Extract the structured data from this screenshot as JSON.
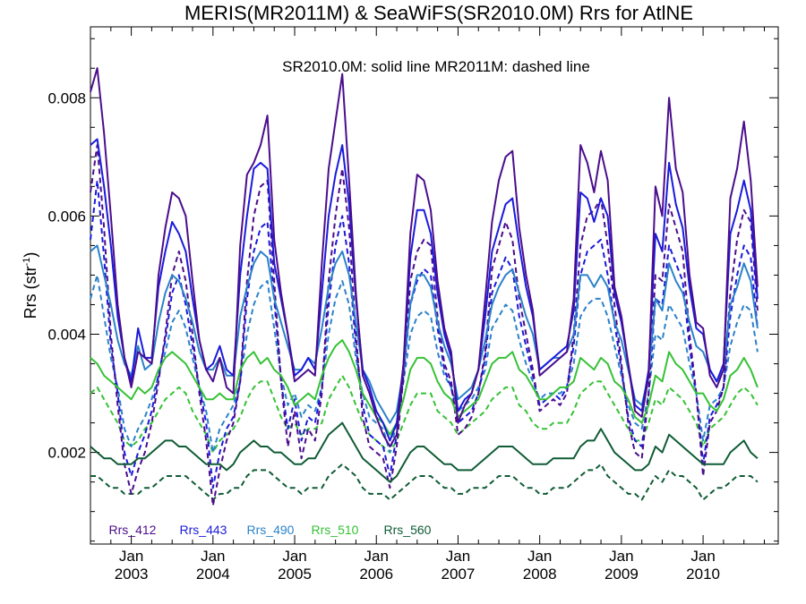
{
  "chart_data": {
    "type": "line",
    "title": "MERIS(MR2011M) & SeaWiFS(SR2010.0M)  Rrs for AtlNE",
    "annotation": "SR2010.0M: solid line   MR2011M: dashed line",
    "ylabel_main": "Rrs (str",
    "ylabel_sup": "-1",
    "ylabel_tail": ")",
    "xlabel": "",
    "ylim": [
      0.00045,
      0.0092
    ],
    "xlim": [
      2002.5,
      2010.92
    ],
    "yticks": [
      0.002,
      0.004,
      0.006,
      0.008
    ],
    "ytick_labels": [
      "0.002",
      "0.004",
      "0.006",
      "0.008"
    ],
    "xticks": [
      2003,
      2004,
      2005,
      2006,
      2007,
      2008,
      2009,
      2010
    ],
    "xtick_month": [
      "Jan",
      "Jan",
      "Jan",
      "Jan",
      "Jan",
      "Jan",
      "Jan",
      "Jan"
    ],
    "xtick_year": [
      "2003",
      "2004",
      "2005",
      "2006",
      "2007",
      "2008",
      "2009",
      "2010"
    ],
    "grid": false,
    "legend_position": "bottom-left",
    "x_start": 2002.5,
    "x_step": 0.08333,
    "series": [
      {
        "name": "Rrs_412",
        "color": "#4b0d8c",
        "solid": [
          0.0081,
          0.0085,
          0.0074,
          0.006,
          0.0045,
          0.0036,
          0.0031,
          0.0037,
          0.0036,
          0.0035,
          0.005,
          0.0058,
          0.0064,
          0.0063,
          0.006,
          0.0049,
          0.0039,
          0.0034,
          0.0032,
          0.0036,
          0.0031,
          0.003,
          0.0055,
          0.0067,
          0.0069,
          0.0072,
          0.0077,
          0.0056,
          0.0047,
          0.004,
          0.0032,
          0.0033,
          0.0034,
          0.0033,
          0.0052,
          0.0068,
          0.0076,
          0.0084,
          0.0066,
          0.0047,
          0.0033,
          0.003,
          0.0026,
          0.0023,
          0.0021,
          0.0023,
          0.0035,
          0.0057,
          0.0067,
          0.0066,
          0.0061,
          0.0049,
          0.0041,
          0.0037,
          0.0025,
          0.0028,
          0.003,
          0.0034,
          0.0046,
          0.0059,
          0.0066,
          0.007,
          0.0071,
          0.0058,
          0.005,
          0.0044,
          0.0033,
          0.0034,
          0.0035,
          0.0036,
          0.0037,
          0.0046,
          0.0072,
          0.0069,
          0.0064,
          0.0071,
          0.0066,
          0.0048,
          0.0043,
          0.0035,
          0.0027,
          0.0026,
          0.0033,
          0.0065,
          0.006,
          0.008,
          0.0068,
          0.0064,
          0.005,
          0.0042,
          0.0041,
          0.0033,
          0.0031,
          0.0034,
          0.0063,
          0.0068,
          0.0076,
          0.0066,
          0.0048
        ],
        "dashed": [
          0.0064,
          0.0072,
          0.0058,
          0.004,
          0.0028,
          0.0018,
          0.0013,
          0.0017,
          0.002,
          0.0025,
          0.0032,
          0.004,
          0.005,
          0.0054,
          0.0049,
          0.004,
          0.003,
          0.0022,
          0.0011,
          0.0017,
          0.0022,
          0.0025,
          0.0032,
          0.0049,
          0.006,
          0.0065,
          0.0066,
          0.0049,
          0.0032,
          0.0021,
          0.0027,
          0.0019,
          0.0024,
          0.0022,
          0.003,
          0.0049,
          0.006,
          0.0068,
          0.0058,
          0.004,
          0.0026,
          0.0021,
          0.002,
          0.0019,
          0.0014,
          0.0021,
          0.0033,
          0.0049,
          0.0054,
          0.0056,
          0.0055,
          0.0043,
          0.0035,
          0.0032,
          0.0023,
          0.0024,
          0.0026,
          0.003,
          0.0037,
          0.0051,
          0.0055,
          0.0059,
          0.0056,
          0.0046,
          0.004,
          0.0034,
          0.0027,
          0.0028,
          0.0029,
          0.0028,
          0.003,
          0.004,
          0.0055,
          0.006,
          0.0061,
          0.0063,
          0.0055,
          0.0045,
          0.0035,
          0.0025,
          0.002,
          0.0019,
          0.003,
          0.005,
          0.0049,
          0.0062,
          0.0058,
          0.0054,
          0.004,
          0.003,
          0.0016,
          0.0025,
          0.0027,
          0.0031,
          0.0047,
          0.0056,
          0.0061,
          0.0059,
          0.0044
        ]
      },
      {
        "name": "Rrs_443",
        "color": "#1a1adb",
        "solid": [
          0.0072,
          0.0073,
          0.0065,
          0.0055,
          0.0043,
          0.0036,
          0.0032,
          0.0041,
          0.0036,
          0.0036,
          0.0048,
          0.0054,
          0.0059,
          0.0057,
          0.0054,
          0.0046,
          0.0039,
          0.0034,
          0.0035,
          0.0038,
          0.0034,
          0.0033,
          0.005,
          0.006,
          0.0068,
          0.0069,
          0.0068,
          0.0052,
          0.0046,
          0.004,
          0.0033,
          0.0034,
          0.0036,
          0.0034,
          0.0047,
          0.006,
          0.0067,
          0.0072,
          0.0062,
          0.0046,
          0.0034,
          0.0031,
          0.0027,
          0.0025,
          0.0022,
          0.0025,
          0.0035,
          0.0053,
          0.0061,
          0.0061,
          0.0057,
          0.0047,
          0.004,
          0.0036,
          0.0027,
          0.0029,
          0.003,
          0.0034,
          0.0043,
          0.0054,
          0.0058,
          0.0062,
          0.0063,
          0.0055,
          0.0048,
          0.0043,
          0.0034,
          0.0035,
          0.0036,
          0.0037,
          0.0038,
          0.0044,
          0.0064,
          0.0063,
          0.0059,
          0.0063,
          0.006,
          0.0047,
          0.0042,
          0.0035,
          0.0028,
          0.0027,
          0.0034,
          0.0057,
          0.0054,
          0.0069,
          0.0062,
          0.0058,
          0.0048,
          0.0041,
          0.004,
          0.0034,
          0.0032,
          0.0035,
          0.0057,
          0.0061,
          0.0066,
          0.0061,
          0.0046
        ],
        "dashed": [
          0.0056,
          0.0066,
          0.0053,
          0.0038,
          0.003,
          0.002,
          0.0016,
          0.002,
          0.0023,
          0.0027,
          0.0033,
          0.0039,
          0.0047,
          0.005,
          0.0045,
          0.0038,
          0.0031,
          0.0025,
          0.0014,
          0.002,
          0.0024,
          0.0026,
          0.0032,
          0.0046,
          0.0054,
          0.0058,
          0.0059,
          0.0046,
          0.0032,
          0.0024,
          0.0029,
          0.0022,
          0.0026,
          0.0025,
          0.0031,
          0.0045,
          0.0055,
          0.006,
          0.0052,
          0.0038,
          0.0028,
          0.0023,
          0.0022,
          0.0021,
          0.0016,
          0.0023,
          0.0033,
          0.0045,
          0.0049,
          0.0051,
          0.005,
          0.0041,
          0.0034,
          0.0031,
          0.0025,
          0.0026,
          0.0027,
          0.003,
          0.0036,
          0.0047,
          0.005,
          0.0053,
          0.0051,
          0.0043,
          0.0038,
          0.0033,
          0.0028,
          0.0029,
          0.003,
          0.0029,
          0.0031,
          0.0038,
          0.005,
          0.0054,
          0.0055,
          0.0056,
          0.005,
          0.0042,
          0.0034,
          0.0026,
          0.0022,
          0.0021,
          0.003,
          0.0046,
          0.0045,
          0.0055,
          0.0052,
          0.0049,
          0.0038,
          0.003,
          0.0018,
          0.0026,
          0.0028,
          0.0031,
          0.0043,
          0.005,
          0.0055,
          0.0053,
          0.0041
        ]
      },
      {
        "name": "Rrs_490",
        "color": "#2b82c9",
        "solid": [
          0.0054,
          0.0055,
          0.005,
          0.0045,
          0.0039,
          0.0035,
          0.0033,
          0.0038,
          0.0034,
          0.0035,
          0.0042,
          0.0047,
          0.005,
          0.0049,
          0.0046,
          0.0042,
          0.0037,
          0.0034,
          0.0034,
          0.0036,
          0.0033,
          0.0033,
          0.0043,
          0.0048,
          0.0052,
          0.0054,
          0.0053,
          0.0046,
          0.0042,
          0.0038,
          0.0034,
          0.0034,
          0.0036,
          0.0035,
          0.0041,
          0.0048,
          0.0052,
          0.0054,
          0.005,
          0.0042,
          0.0034,
          0.0032,
          0.0029,
          0.0027,
          0.0025,
          0.0027,
          0.0034,
          0.0045,
          0.005,
          0.005,
          0.0048,
          0.0042,
          0.0038,
          0.0035,
          0.0029,
          0.003,
          0.0031,
          0.0034,
          0.0039,
          0.0045,
          0.0048,
          0.005,
          0.0051,
          0.0047,
          0.0043,
          0.004,
          0.0034,
          0.0035,
          0.0036,
          0.0036,
          0.0037,
          0.004,
          0.005,
          0.005,
          0.0048,
          0.005,
          0.0048,
          0.0042,
          0.0039,
          0.0034,
          0.0029,
          0.0028,
          0.0033,
          0.0046,
          0.0044,
          0.0052,
          0.0049,
          0.0047,
          0.0042,
          0.0038,
          0.0037,
          0.0034,
          0.0032,
          0.0034,
          0.0045,
          0.0048,
          0.0052,
          0.0049,
          0.0041
        ],
        "dashed": [
          0.0046,
          0.005,
          0.0043,
          0.0036,
          0.0031,
          0.0024,
          0.0021,
          0.0024,
          0.0026,
          0.0029,
          0.0033,
          0.0037,
          0.0042,
          0.0044,
          0.0041,
          0.0036,
          0.0031,
          0.0027,
          0.002,
          0.0024,
          0.0026,
          0.0028,
          0.0032,
          0.004,
          0.0045,
          0.0048,
          0.0049,
          0.0041,
          0.0033,
          0.0028,
          0.003,
          0.0026,
          0.0028,
          0.0027,
          0.0031,
          0.004,
          0.0046,
          0.0049,
          0.0045,
          0.0036,
          0.003,
          0.0026,
          0.0025,
          0.0024,
          0.002,
          0.0025,
          0.0032,
          0.004,
          0.0043,
          0.0044,
          0.0043,
          0.0037,
          0.0033,
          0.0031,
          0.0027,
          0.0028,
          0.0029,
          0.0031,
          0.0034,
          0.0041,
          0.0043,
          0.0045,
          0.0044,
          0.0039,
          0.0035,
          0.0032,
          0.0029,
          0.003,
          0.003,
          0.003,
          0.0031,
          0.0035,
          0.0043,
          0.0045,
          0.0046,
          0.0046,
          0.0043,
          0.0038,
          0.0033,
          0.0028,
          0.0025,
          0.0024,
          0.003,
          0.004,
          0.0039,
          0.0045,
          0.0043,
          0.0041,
          0.0035,
          0.003,
          0.0022,
          0.0028,
          0.0029,
          0.0031,
          0.0038,
          0.0042,
          0.0045,
          0.0044,
          0.0037
        ]
      },
      {
        "name": "Rrs_510",
        "color": "#35c235",
        "solid": [
          0.0036,
          0.0035,
          0.0033,
          0.0032,
          0.0031,
          0.003,
          0.0029,
          0.0031,
          0.003,
          0.0031,
          0.0034,
          0.0036,
          0.0037,
          0.0036,
          0.0035,
          0.0033,
          0.0031,
          0.0029,
          0.0029,
          0.003,
          0.0029,
          0.0029,
          0.0034,
          0.0036,
          0.0037,
          0.0035,
          0.0036,
          0.0034,
          0.0033,
          0.0031,
          0.0028,
          0.0029,
          0.003,
          0.0029,
          0.0033,
          0.0036,
          0.0038,
          0.0039,
          0.0037,
          0.0034,
          0.003,
          0.0028,
          0.0026,
          0.0025,
          0.0023,
          0.0025,
          0.0029,
          0.0034,
          0.0036,
          0.0036,
          0.0035,
          0.0032,
          0.003,
          0.0029,
          0.0026,
          0.0027,
          0.0028,
          0.0029,
          0.0032,
          0.0035,
          0.0036,
          0.0036,
          0.0037,
          0.0034,
          0.0033,
          0.0031,
          0.0029,
          0.0029,
          0.003,
          0.0031,
          0.0031,
          0.0032,
          0.0036,
          0.0035,
          0.0034,
          0.0036,
          0.0035,
          0.0032,
          0.0031,
          0.0029,
          0.0026,
          0.0025,
          0.0028,
          0.0033,
          0.0032,
          0.0037,
          0.0035,
          0.0034,
          0.0032,
          0.003,
          0.003,
          0.0028,
          0.0027,
          0.0029,
          0.0033,
          0.0034,
          0.0036,
          0.0034,
          0.0031
        ],
        "dashed": [
          0.003,
          0.0031,
          0.0029,
          0.0027,
          0.0025,
          0.0022,
          0.0021,
          0.0022,
          0.0024,
          0.0025,
          0.0027,
          0.0029,
          0.003,
          0.0031,
          0.003,
          0.0027,
          0.0025,
          0.0023,
          0.002,
          0.0022,
          0.0023,
          0.0024,
          0.0026,
          0.0029,
          0.0031,
          0.0032,
          0.0032,
          0.0029,
          0.0026,
          0.0024,
          0.0025,
          0.0023,
          0.0024,
          0.0024,
          0.0025,
          0.0029,
          0.0031,
          0.0033,
          0.0031,
          0.0028,
          0.0025,
          0.0023,
          0.0022,
          0.0021,
          0.002,
          0.0022,
          0.0025,
          0.0028,
          0.003,
          0.003,
          0.003,
          0.0027,
          0.0026,
          0.0025,
          0.0023,
          0.0024,
          0.0025,
          0.0026,
          0.0027,
          0.0029,
          0.003,
          0.0031,
          0.0031,
          0.0028,
          0.0027,
          0.0025,
          0.0024,
          0.0024,
          0.0025,
          0.0025,
          0.0025,
          0.0027,
          0.003,
          0.0031,
          0.0032,
          0.0032,
          0.003,
          0.0028,
          0.0026,
          0.0024,
          0.0022,
          0.0022,
          0.0025,
          0.0029,
          0.0028,
          0.0031,
          0.003,
          0.0029,
          0.0027,
          0.0025,
          0.0021,
          0.0024,
          0.0025,
          0.0026,
          0.0028,
          0.003,
          0.0031,
          0.003,
          0.0028
        ]
      },
      {
        "name": "Rrs_560",
        "color": "#0f5c35",
        "solid": [
          0.0021,
          0.002,
          0.0019,
          0.0019,
          0.0018,
          0.0018,
          0.0018,
          0.0019,
          0.0019,
          0.002,
          0.0021,
          0.0022,
          0.0022,
          0.0021,
          0.0021,
          0.002,
          0.0019,
          0.0018,
          0.0018,
          0.0018,
          0.0017,
          0.0018,
          0.002,
          0.0021,
          0.0022,
          0.0021,
          0.0021,
          0.002,
          0.002,
          0.0019,
          0.0018,
          0.0018,
          0.0019,
          0.0019,
          0.0021,
          0.0023,
          0.0024,
          0.0025,
          0.0023,
          0.0021,
          0.0019,
          0.0018,
          0.0017,
          0.0016,
          0.0015,
          0.0016,
          0.0018,
          0.002,
          0.0021,
          0.0021,
          0.002,
          0.0019,
          0.0018,
          0.0018,
          0.0017,
          0.0017,
          0.0017,
          0.0018,
          0.0019,
          0.002,
          0.0021,
          0.0021,
          0.0021,
          0.002,
          0.0019,
          0.0018,
          0.0018,
          0.0018,
          0.0019,
          0.0019,
          0.0019,
          0.0019,
          0.0021,
          0.0022,
          0.0022,
          0.0024,
          0.0022,
          0.002,
          0.0019,
          0.0018,
          0.0017,
          0.0017,
          0.0018,
          0.0021,
          0.002,
          0.0023,
          0.0022,
          0.0021,
          0.002,
          0.0019,
          0.0018,
          0.0018,
          0.0018,
          0.0018,
          0.002,
          0.0021,
          0.0022,
          0.002,
          0.0019
        ],
        "dashed": [
          0.0016,
          0.0016,
          0.0015,
          0.0014,
          0.0014,
          0.0013,
          0.0013,
          0.0013,
          0.0014,
          0.0014,
          0.0015,
          0.0016,
          0.0016,
          0.0016,
          0.0016,
          0.0015,
          0.0014,
          0.0013,
          0.0012,
          0.0013,
          0.0013,
          0.0014,
          0.0014,
          0.0016,
          0.0017,
          0.0017,
          0.0017,
          0.0016,
          0.0015,
          0.0014,
          0.0014,
          0.0013,
          0.0014,
          0.0014,
          0.0014,
          0.0016,
          0.0017,
          0.0018,
          0.0017,
          0.0016,
          0.0014,
          0.0013,
          0.0013,
          0.0013,
          0.0012,
          0.0013,
          0.0014,
          0.0015,
          0.0016,
          0.0016,
          0.0016,
          0.0015,
          0.0014,
          0.0014,
          0.0013,
          0.0013,
          0.0014,
          0.0014,
          0.0014,
          0.0015,
          0.0016,
          0.0016,
          0.0016,
          0.0015,
          0.0014,
          0.0014,
          0.0013,
          0.0013,
          0.0014,
          0.0014,
          0.0014,
          0.0015,
          0.0016,
          0.0017,
          0.0017,
          0.0018,
          0.0016,
          0.0015,
          0.0014,
          0.0013,
          0.0013,
          0.0012,
          0.0014,
          0.0016,
          0.0015,
          0.0017,
          0.0016,
          0.0016,
          0.0015,
          0.0014,
          0.0012,
          0.0013,
          0.0014,
          0.0014,
          0.0015,
          0.0016,
          0.0016,
          0.0016,
          0.0015
        ]
      }
    ]
  }
}
